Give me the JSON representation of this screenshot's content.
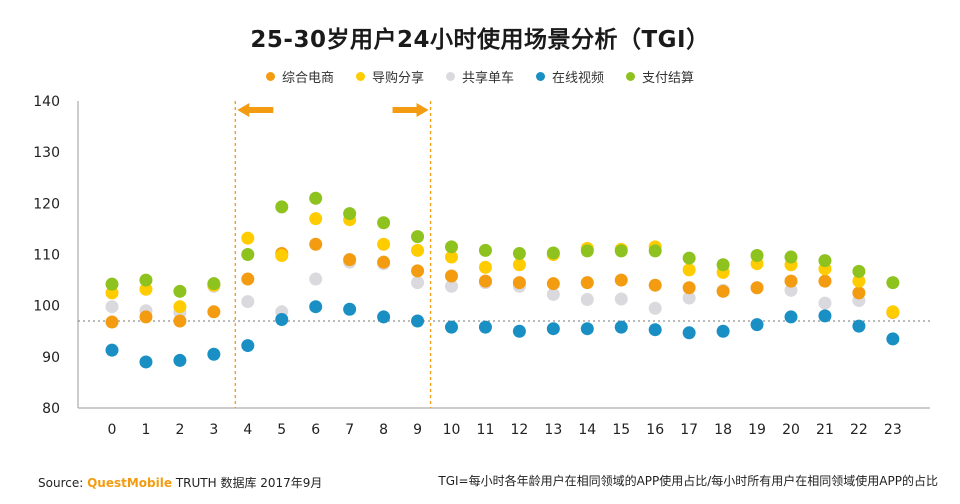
{
  "title": "25-30岁用户24小时使用场景分析（TGI）",
  "footer": {
    "source_label": "Source:",
    "brand": "QuestMobile",
    "source_rest": "TRUTH 数据库 2017年9月",
    "note": "TGI=每小时各年龄用户在相同领域的APP使用占比/每小时所有用户在相同领域使用APP的占比"
  },
  "chart_data": {
    "type": "scatter",
    "title": "25-30岁用户24小时使用场景分析（TGI）",
    "xlabel": "",
    "ylabel": "",
    "categories": [
      "0",
      "1",
      "2",
      "3",
      "4",
      "5",
      "6",
      "7",
      "8",
      "9",
      "10",
      "11",
      "12",
      "13",
      "14",
      "15",
      "16",
      "17",
      "18",
      "19",
      "20",
      "21",
      "22",
      "23"
    ],
    "yticks": [
      80,
      90,
      100,
      110,
      120,
      130,
      140
    ],
    "ylim": [
      80,
      140
    ],
    "reference_line": 97,
    "highlight_range": [
      "4",
      "9"
    ],
    "legend_position": "top-center",
    "grid": false,
    "series": [
      {
        "name": "综合电商",
        "color": "#f39c12",
        "values": [
          96.8,
          97.8,
          97.0,
          98.8,
          105.2,
          110.2,
          112.0,
          109.0,
          108.5,
          106.8,
          105.8,
          104.8,
          104.5,
          104.3,
          104.5,
          105.0,
          104.0,
          103.5,
          102.8,
          103.5,
          104.8,
          104.8,
          102.5,
          98.7
        ]
      },
      {
        "name": "导购分享",
        "color": "#ffcc00",
        "values": [
          102.5,
          103.2,
          99.8,
          104.0,
          113.2,
          109.8,
          117.0,
          116.8,
          112.0,
          110.8,
          109.5,
          107.5,
          108.0,
          110.0,
          111.2,
          111.0,
          111.5,
          107.0,
          106.5,
          108.2,
          108.0,
          107.2,
          104.8,
          98.8
        ]
      },
      {
        "name": "共享单车",
        "color": "#d9d9de",
        "values": [
          99.8,
          99.0,
          98.7,
          103.8,
          100.8,
          98.8,
          105.2,
          108.5,
          108.2,
          104.5,
          103.8,
          104.5,
          103.8,
          102.2,
          101.2,
          101.3,
          99.5,
          101.5,
          103.0,
          103.5,
          103.0,
          100.5,
          101.0,
          98.7
        ]
      },
      {
        "name": "在线视频",
        "color": "#1a8fc4",
        "values": [
          91.3,
          89.0,
          89.3,
          90.5,
          92.2,
          97.3,
          99.8,
          99.3,
          97.8,
          97.0,
          95.8,
          95.8,
          95.0,
          95.5,
          95.5,
          95.8,
          95.3,
          94.7,
          95.0,
          96.3,
          97.8,
          98.0,
          96.0,
          93.5
        ]
      },
      {
        "name": "支付结算",
        "color": "#8dc21f",
        "values": [
          104.2,
          105.0,
          102.8,
          104.3,
          110.0,
          119.3,
          121.0,
          118.0,
          116.2,
          113.5,
          111.5,
          110.8,
          110.2,
          110.3,
          110.7,
          110.7,
          110.7,
          109.3,
          108.0,
          109.8,
          109.5,
          108.8,
          106.7,
          104.5
        ]
      }
    ]
  }
}
